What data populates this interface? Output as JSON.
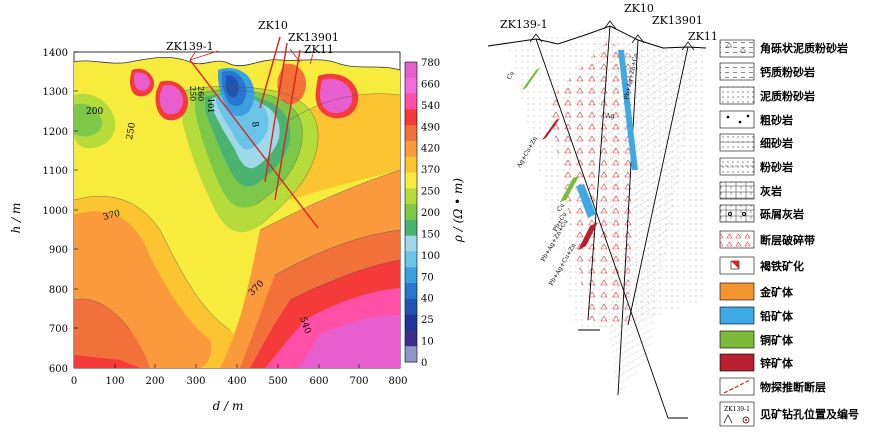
{
  "section_map": {
    "y_ticks": [
      "1400",
      "1300",
      "1200",
      "1100",
      "1000",
      "900",
      "800",
      "700",
      "600"
    ],
    "x_ticks": [
      "0",
      "100",
      "200",
      "300",
      "400",
      "500",
      "600",
      "700",
      "800"
    ],
    "y_axis_label": "h / m",
    "x_axis_label": "d / m",
    "colorbar_label": "ρ / (Ω • m)",
    "colorbar_ticks": [
      "780",
      "660",
      "540",
      "490",
      "420",
      "370",
      "250",
      "200",
      "150",
      "100",
      "70",
      "40",
      "25",
      "10",
      "0"
    ],
    "colorbar_colors": [
      "#e75fcf",
      "#f26bd7",
      "#ff4fa6",
      "#f53a3a",
      "#f2713b",
      "#fb9a3c",
      "#fbc430",
      "#f7ec3e",
      "#b6dc3c",
      "#7ec849",
      "#49b36f",
      "#9fd8e8",
      "#6ac4ea",
      "#3aa0e0",
      "#2776cf",
      "#1f54b5",
      "#21349a",
      "#3d2f8c",
      "#8f96c8"
    ],
    "boreholes": [
      "ZK139-1",
      "ZK10",
      "ZK13901",
      "ZK11"
    ],
    "contour_labels": [
      "200",
      "250",
      "370",
      "370",
      "540",
      "250",
      "260",
      "101",
      "8"
    ]
  },
  "section_diagram": {
    "boreholes": [
      "ZK139-1",
      "ZK10",
      "ZK13901",
      "ZK11"
    ],
    "ore_labels": [
      "Cu",
      "Ag+Cu+Zn",
      "Pb+Ag+Zn+Cu",
      "Ag",
      "Cu",
      "Pb+Cu",
      "Pb+Ag+Zn+Cu",
      "Pb+Ag+Cu+Zn"
    ]
  },
  "legend": {
    "items": [
      {
        "label": "角砾状泥质粉砂岩",
        "swatch": "angular-siltstone-pattern"
      },
      {
        "label": "钙质粉砂岩",
        "swatch": "calcareous-siltstone-pattern"
      },
      {
        "label": "泥质粉砂岩",
        "swatch": "argillaceous-siltstone-pattern"
      },
      {
        "label": "粗砂岩",
        "swatch": "coarse-sandstone-pattern"
      },
      {
        "label": "细砂岩",
        "swatch": "fine-sandstone-pattern"
      },
      {
        "label": "粉砂岩",
        "swatch": "siltstone-pattern"
      },
      {
        "label": "灰岩",
        "swatch": "limestone-pattern"
      },
      {
        "label": "砾屑灰岩",
        "swatch": "calcirudite-pattern"
      },
      {
        "label": "断层破碎带",
        "swatch": "fault-breccia-pattern"
      },
      {
        "label": "褐铁矿化",
        "swatch": "limonite-pattern"
      },
      {
        "label": "金矿体",
        "swatch": "#f3962f"
      },
      {
        "label": "铅矿体",
        "swatch": "#3fa9e6"
      },
      {
        "label": "铜矿体",
        "swatch": "#7cba3a"
      },
      {
        "label": "锌矿体",
        "swatch": "#b8202f"
      },
      {
        "label": "物探推断断层",
        "swatch": "red-dashed-line"
      },
      {
        "label": "见矿钻孔位置及编号",
        "swatch": "borehole-symbol"
      }
    ],
    "borehole_symbol_text": "ZK139-1"
  },
  "colors": {
    "fault_red": "#e02020",
    "gold": "#f3962f",
    "lead": "#3fa9e6",
    "copper": "#7cba3a",
    "zinc": "#b8202f"
  }
}
